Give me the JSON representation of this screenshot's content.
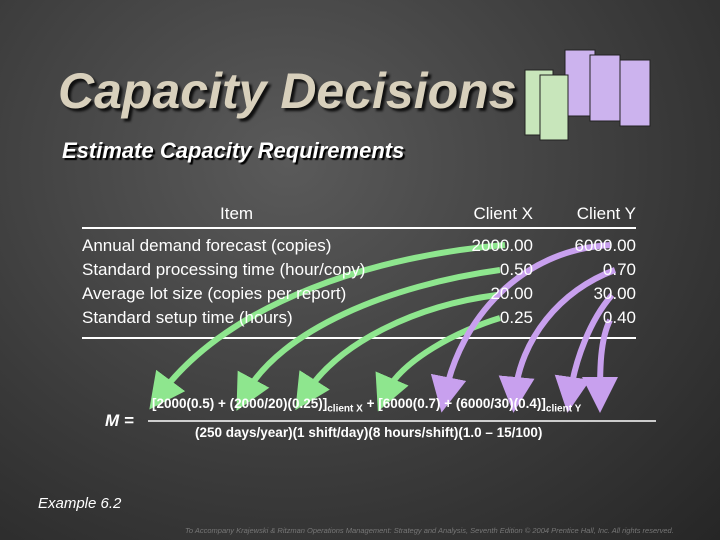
{
  "header": {
    "title": "Capacity Decisions",
    "subtitle": "Estimate Capacity Requirements"
  },
  "table": {
    "columns": [
      "Item",
      "Client X",
      "Client Y"
    ],
    "rows": [
      [
        "Annual demand forecast (copies)",
        "2000.00",
        "6000.00"
      ],
      [
        "Standard processing time (hour/copy)",
        "0.50",
        "0.70"
      ],
      [
        "Average lot size (copies per report)",
        "20.00",
        "30.00"
      ],
      [
        "Standard setup time (hours)",
        "0.25",
        "0.40"
      ]
    ]
  },
  "formula": {
    "lhs": "M =",
    "numerator": [
      "[2000(0.5) + (2000/20)(0.25)]",
      "client X",
      " + [6000(0.7) + (6000/30)(0.4)]",
      "client Y"
    ],
    "denominator": "(250 days/year)(1 shift/day)(8 hours/shift)(1.0 – 15/100)"
  },
  "example": "Example 6.2",
  "footer": "To Accompany Krajewski & Ritzman Operations Management: Strategy and Analysis, Seventh Edition © 2004 Prentice Hall, Inc. All rights reserved."
}
